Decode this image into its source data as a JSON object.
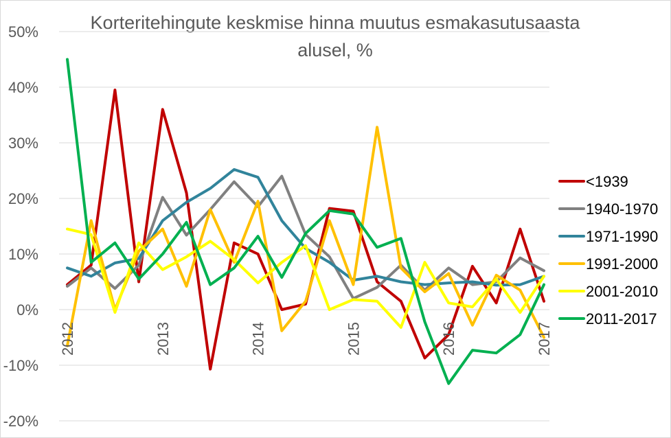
{
  "chart_data": {
    "type": "line",
    "title_lines": [
      "Korteritehingute keskmise hinna muutus esmakasutusaasta",
      "alusel, %"
    ],
    "ylim": [
      -20,
      50
    ],
    "yticks": [
      {
        "value": 50,
        "label": "50%"
      },
      {
        "value": 40,
        "label": "40%"
      },
      {
        "value": 30,
        "label": "30%"
      },
      {
        "value": 20,
        "label": "20%"
      },
      {
        "value": 10,
        "label": "10%"
      },
      {
        "value": 0,
        "label": "0%"
      },
      {
        "value": -10,
        "label": "-10%"
      },
      {
        "value": -20,
        "label": "-20%"
      }
    ],
    "x_count": 21,
    "xticks": [
      {
        "index": 0,
        "label": "2012"
      },
      {
        "index": 4,
        "label": "2013"
      },
      {
        "index": 8,
        "label": "2014"
      },
      {
        "index": 12,
        "label": "2015"
      },
      {
        "index": 16,
        "label": "2016"
      },
      {
        "index": 20,
        "label": "2017"
      }
    ],
    "grid": true,
    "legend_position": "right",
    "series": [
      {
        "name": "<1939",
        "color": "#c00000",
        "values": [
          4.5,
          8,
          39.5,
          5,
          36,
          21,
          -10.7,
          12,
          10,
          0,
          1,
          18.2,
          17.7,
          5,
          1.5,
          -8.7,
          -4.5,
          7.8,
          1.2,
          14.5,
          1.5
        ]
      },
      {
        "name": "1940-1970",
        "color": "#808080",
        "values": [
          4.2,
          7.5,
          3.8,
          8,
          20.2,
          13.4,
          18,
          23,
          18.5,
          24,
          13.5,
          9.5,
          2,
          4,
          8,
          3.5,
          7.5,
          4.5,
          5,
          9.3,
          7
        ]
      },
      {
        "name": "1971-1990",
        "color": "#31849b",
        "values": [
          7.5,
          6,
          8.4,
          9.2,
          16,
          19.3,
          21.8,
          25.2,
          23.8,
          16,
          11,
          8.5,
          5.3,
          6,
          5,
          4.5,
          4.8,
          5,
          4.4,
          4.5,
          6
        ]
      },
      {
        "name": "1991-2000",
        "color": "#ffc000",
        "values": [
          -6.5,
          16,
          0,
          10.5,
          14.5,
          4.2,
          18,
          8.5,
          19.5,
          -3.8,
          1.5,
          16,
          4.5,
          32.8,
          7.5,
          3.2,
          6.5,
          -2.8,
          6.2,
          3.5,
          -5
        ]
      },
      {
        "name": "2001-2010",
        "color": "#ffff00",
        "values": [
          14.5,
          13.5,
          -0.5,
          12,
          7.2,
          9.5,
          12.3,
          9,
          4.8,
          8.5,
          11.5,
          0,
          1.8,
          1.5,
          -3.2,
          8.5,
          1.2,
          0.5,
          5.5,
          -0.5,
          6
        ]
      },
      {
        "name": "2011-2017",
        "color": "#00b050",
        "values": [
          45,
          8.5,
          12,
          5.5,
          10,
          15.7,
          4.5,
          7.5,
          13.2,
          5.8,
          13.7,
          17.8,
          17.2,
          11.2,
          12.8,
          -2.2,
          -13.3,
          -7.3,
          -7.8,
          -4.5,
          4.5
        ]
      }
    ]
  }
}
